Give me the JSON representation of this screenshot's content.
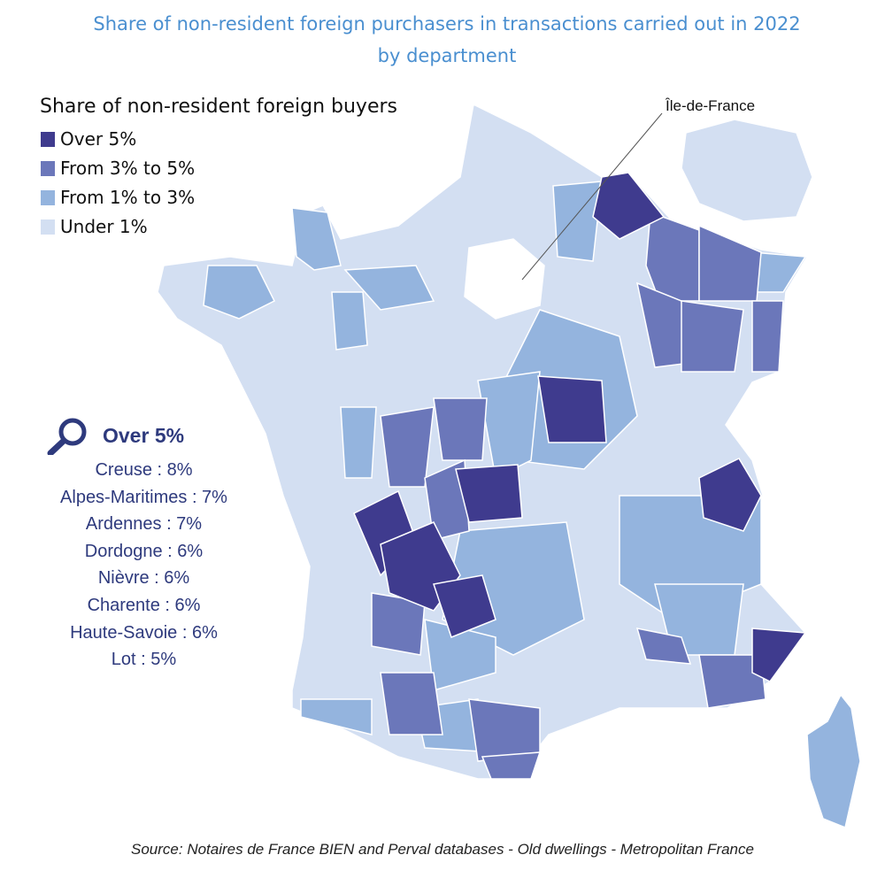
{
  "title": [
    "Share of non-resident foreign purchasers in transactions carried out in 2022",
    "by department"
  ],
  "legend": {
    "title": "Share of non-resident foreign buyers",
    "items": [
      {
        "label": "Over 5%",
        "color": "#3f3b8e"
      },
      {
        "label": "From 3% to 5%",
        "color": "#6b77ba"
      },
      {
        "label": "From 1% to 3%",
        "color": "#94b4de"
      },
      {
        "label": "Under 1%",
        "color": "#d3dff2"
      }
    ]
  },
  "inset_label": "Île-de-France",
  "highlight": {
    "icon": "magnifier-icon",
    "title": "Over 5%",
    "items": [
      "Creuse : 8%",
      "Alpes-Maritimes : 7%",
      "Ardennes : 7%",
      "Dordogne : 6%",
      "Nièvre : 6%",
      "Charente : 6%",
      "Haute-Savoie : 6%",
      "Lot : 5%"
    ]
  },
  "source": "Source: Notaires de France BIEN and Perval databases - Old dwellings - Metropolitan France"
}
